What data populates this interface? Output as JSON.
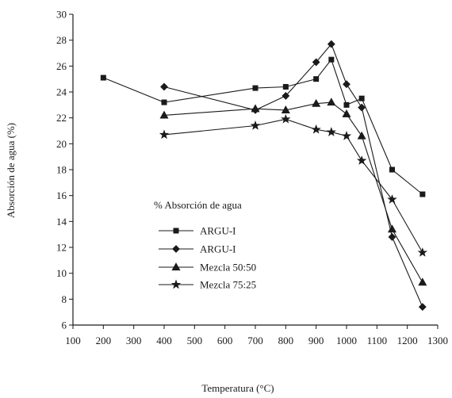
{
  "chart_data": {
    "type": "line",
    "xlabel": "Temperatura (°C)",
    "ylabel": "Absorción de agua (%)",
    "xlim": [
      100,
      1300
    ],
    "ylim": [
      6,
      30
    ],
    "xticks": [
      100,
      200,
      300,
      400,
      500,
      600,
      700,
      800,
      900,
      1000,
      1100,
      1200,
      1300
    ],
    "yticks": [
      6,
      8,
      10,
      12,
      14,
      16,
      18,
      20,
      22,
      24,
      26,
      28,
      30
    ],
    "grid": false,
    "legend": {
      "title": "% Absorción de agua",
      "placement": "lower-left"
    },
    "series": [
      {
        "name": "ARGU-I",
        "marker": "square",
        "points": [
          [
            200,
            25.1
          ],
          [
            400,
            23.2
          ],
          [
            700,
            24.3
          ],
          [
            800,
            24.4
          ],
          [
            900,
            25.0
          ],
          [
            950,
            26.5
          ],
          [
            1000,
            23.0
          ],
          [
            1050,
            23.5
          ],
          [
            1150,
            18.0
          ],
          [
            1250,
            16.1
          ]
        ]
      },
      {
        "name": "ARGU-I",
        "marker": "diamond",
        "points": [
          [
            400,
            24.4
          ],
          [
            700,
            22.6
          ],
          [
            800,
            23.7
          ],
          [
            900,
            26.3
          ],
          [
            950,
            27.7
          ],
          [
            1000,
            24.6
          ],
          [
            1050,
            22.8
          ],
          [
            1150,
            12.8
          ],
          [
            1250,
            7.4
          ]
        ]
      },
      {
        "name": "Mezcla 50:50",
        "marker": "triangle",
        "points": [
          [
            400,
            22.2
          ],
          [
            700,
            22.7
          ],
          [
            800,
            22.6
          ],
          [
            900,
            23.1
          ],
          [
            950,
            23.2
          ],
          [
            1000,
            22.3
          ],
          [
            1050,
            20.6
          ],
          [
            1150,
            13.4
          ],
          [
            1250,
            9.3
          ]
        ]
      },
      {
        "name": "Mezcla 75:25",
        "marker": "star",
        "points": [
          [
            400,
            20.7
          ],
          [
            700,
            21.4
          ],
          [
            800,
            21.9
          ],
          [
            900,
            21.1
          ],
          [
            950,
            20.9
          ],
          [
            1000,
            20.6
          ],
          [
            1050,
            18.7
          ],
          [
            1150,
            15.7
          ],
          [
            1250,
            11.6
          ]
        ]
      }
    ]
  }
}
